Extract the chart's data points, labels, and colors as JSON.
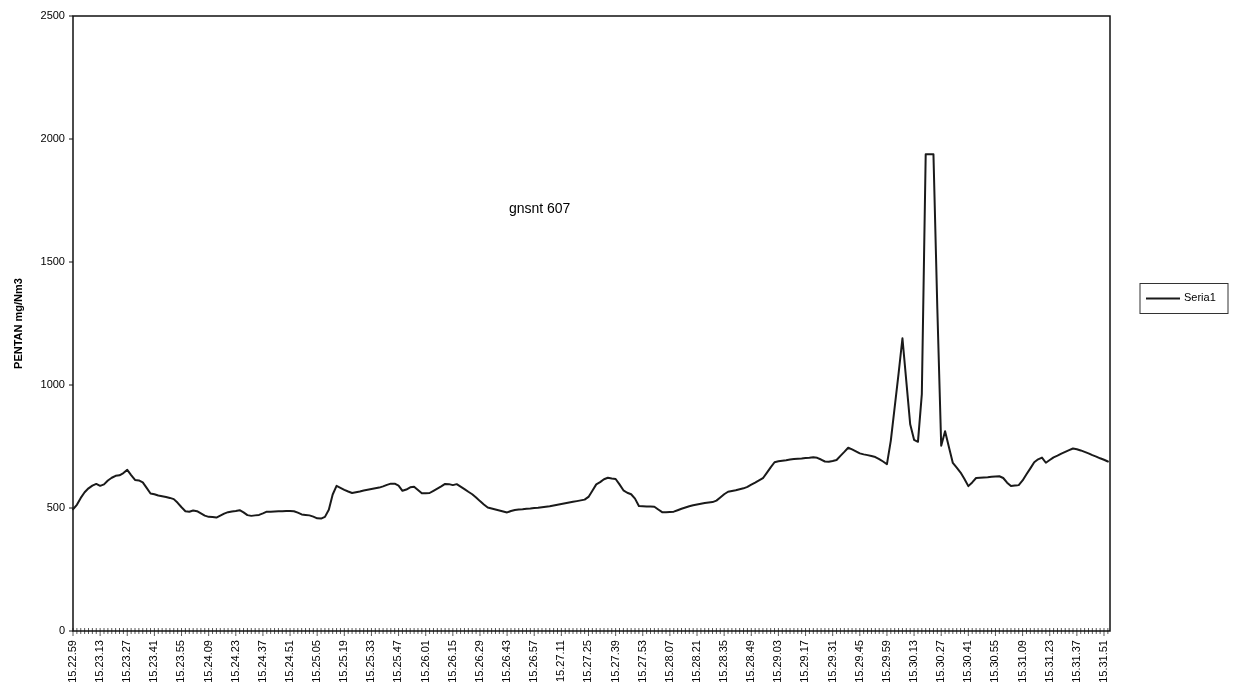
{
  "chart_data": {
    "type": "line",
    "ylabel": "PENTAN mg/Nm3",
    "annotations": [
      "gnsnt 607"
    ],
    "legend": "right",
    "marker": "none",
    "line_style": "solid",
    "grid": false,
    "ylim": [
      0,
      2500
    ],
    "yticks": [
      0,
      500,
      1000,
      1500,
      2000,
      2500
    ],
    "categories": [
      "15.22.59",
      null,
      null,
      null,
      null,
      null,
      null,
      "15.23.13",
      null,
      null,
      null,
      null,
      null,
      null,
      "15.23.27",
      null,
      null,
      null,
      null,
      null,
      null,
      "15.23.41",
      null,
      null,
      null,
      null,
      null,
      null,
      "15.23.55",
      null,
      null,
      null,
      null,
      null,
      null,
      "15.24.09",
      null,
      null,
      null,
      null,
      null,
      null,
      "15.24.23",
      null,
      null,
      null,
      null,
      null,
      null,
      "15.24.37",
      null,
      null,
      null,
      null,
      null,
      null,
      "15.24.51",
      null,
      null,
      null,
      null,
      null,
      null,
      "15.25.05",
      null,
      null,
      null,
      null,
      null,
      null,
      "15.25.19",
      null,
      null,
      null,
      null,
      null,
      null,
      "15.25.33",
      null,
      null,
      null,
      null,
      null,
      null,
      "15.25.47",
      null,
      null,
      null,
      null,
      null,
      null,
      "15.26.01",
      null,
      null,
      null,
      null,
      null,
      null,
      "15.26.15",
      null,
      null,
      null,
      null,
      null,
      null,
      "15.26.29",
      null,
      null,
      null,
      null,
      null,
      null,
      "15.26.43",
      null,
      null,
      null,
      null,
      null,
      null,
      "15.26.57",
      null,
      null,
      null,
      null,
      null,
      null,
      "15.27.11",
      null,
      null,
      null,
      null,
      null,
      null,
      "15.27.25",
      null,
      null,
      null,
      null,
      null,
      null,
      "15.27.39",
      null,
      null,
      null,
      null,
      null,
      null,
      "15.27.53",
      null,
      null,
      null,
      null,
      null,
      null,
      "15.28.07",
      null,
      null,
      null,
      null,
      null,
      null,
      "15.28.21",
      null,
      null,
      null,
      null,
      null,
      null,
      "15.28.35",
      null,
      null,
      null,
      null,
      null,
      null,
      "15.28.49",
      null,
      null,
      null,
      null,
      null,
      null,
      "15.29.03",
      null,
      null,
      null,
      null,
      null,
      null,
      "15.29.17",
      null,
      null,
      null,
      null,
      null,
      null,
      "15.29.31",
      null,
      null,
      null,
      null,
      null,
      null,
      "15.29.45",
      null,
      null,
      null,
      null,
      null,
      null,
      "15.29.59",
      null,
      null,
      null,
      null,
      null,
      null,
      "15.30.13",
      null,
      null,
      null,
      null,
      null,
      null,
      "15.30.27",
      null,
      null,
      null,
      null,
      null,
      null,
      "15.30.41",
      null,
      null,
      null,
      null,
      null,
      null,
      "15.30.55",
      null,
      null,
      null,
      null,
      null,
      null,
      "15.31.09",
      null,
      null,
      null,
      null,
      null,
      null,
      "15.31.23",
      null,
      null,
      null,
      null,
      null,
      null,
      "15.31.37",
      null,
      null,
      null,
      null,
      null,
      null,
      "15.31.51",
      null
    ],
    "series": [
      {
        "name": "Seria1",
        "color": "#1a1a1a",
        "values": [
          495,
          513,
          541,
          564,
          580,
          591,
          598,
          590,
          596,
          612,
          623,
          631,
          633,
          642,
          655,
          634,
          614,
          612,
          604,
          582,
          559,
          556,
          551,
          548,
          545,
          541,
          536,
          521,
          503,
          487,
          485,
          490,
          487,
          478,
          469,
          464,
          463,
          461,
          469,
          477,
          483,
          486,
          488,
          491,
          482,
          471,
          468,
          470,
          472,
          478,
          485,
          485,
          486,
          487,
          487,
          488,
          488,
          487,
          481,
          474,
          472,
          470,
          465,
          458,
          457,
          464,
          493,
          555,
          590,
          582,
          574,
          567,
          561,
          564,
          567,
          571,
          574,
          577,
          580,
          583,
          588,
          594,
          599,
          599,
          591,
          570,
          575,
          584,
          586,
          573,
          560,
          560,
          561,
          570,
          579,
          588,
          598,
          597,
          593,
          597,
          587,
          577,
          566,
          556,
          543,
          528,
          514,
          502,
          498,
          494,
          490,
          486,
          482,
          488,
          492,
          494,
          495,
          497,
          498,
          500,
          501,
          503,
          505,
          507,
          510,
          513,
          516,
          519,
          522,
          525,
          528,
          531,
          534,
          545,
          570,
          596,
          605,
          617,
          623,
          620,
          618,
          596,
          572,
          562,
          556,
          538,
          508,
          507,
          506,
          506,
          505,
          494,
          483,
          483,
          484,
          485,
          491,
          497,
          502,
          507,
          511,
          514,
          517,
          520,
          522,
          524,
          530,
          543,
          556,
          566,
          569,
          572,
          576,
          580,
          586,
          595,
          603,
          612,
          621,
          643,
          665,
          686,
          690,
          692,
          694,
          697,
          699,
          700,
          701,
          703,
          704,
          706,
          704,
          697,
          689,
          688,
          691,
          695,
          712,
          728,
          745,
          738,
          730,
          722,
          718,
          715,
          711,
          707,
          699,
          689,
          678,
          774,
          910,
          1046,
          1190,
          1015,
          840,
          777,
          769,
          963,
          1938,
          1938,
          1938,
          1311,
          753,
          812,
          747,
          683,
          664,
          644,
          618,
          589,
          604,
          622,
          623,
          624,
          625,
          627,
          628,
          629,
          622,
          603,
          589,
          591,
          593,
          612,
          637,
          661,
          686,
          698,
          705,
          684,
          695,
          706,
          713,
          721,
          728,
          735,
          742,
          739,
          734,
          728,
          722,
          715,
          709,
          702,
          696,
          689
        ]
      }
    ]
  }
}
